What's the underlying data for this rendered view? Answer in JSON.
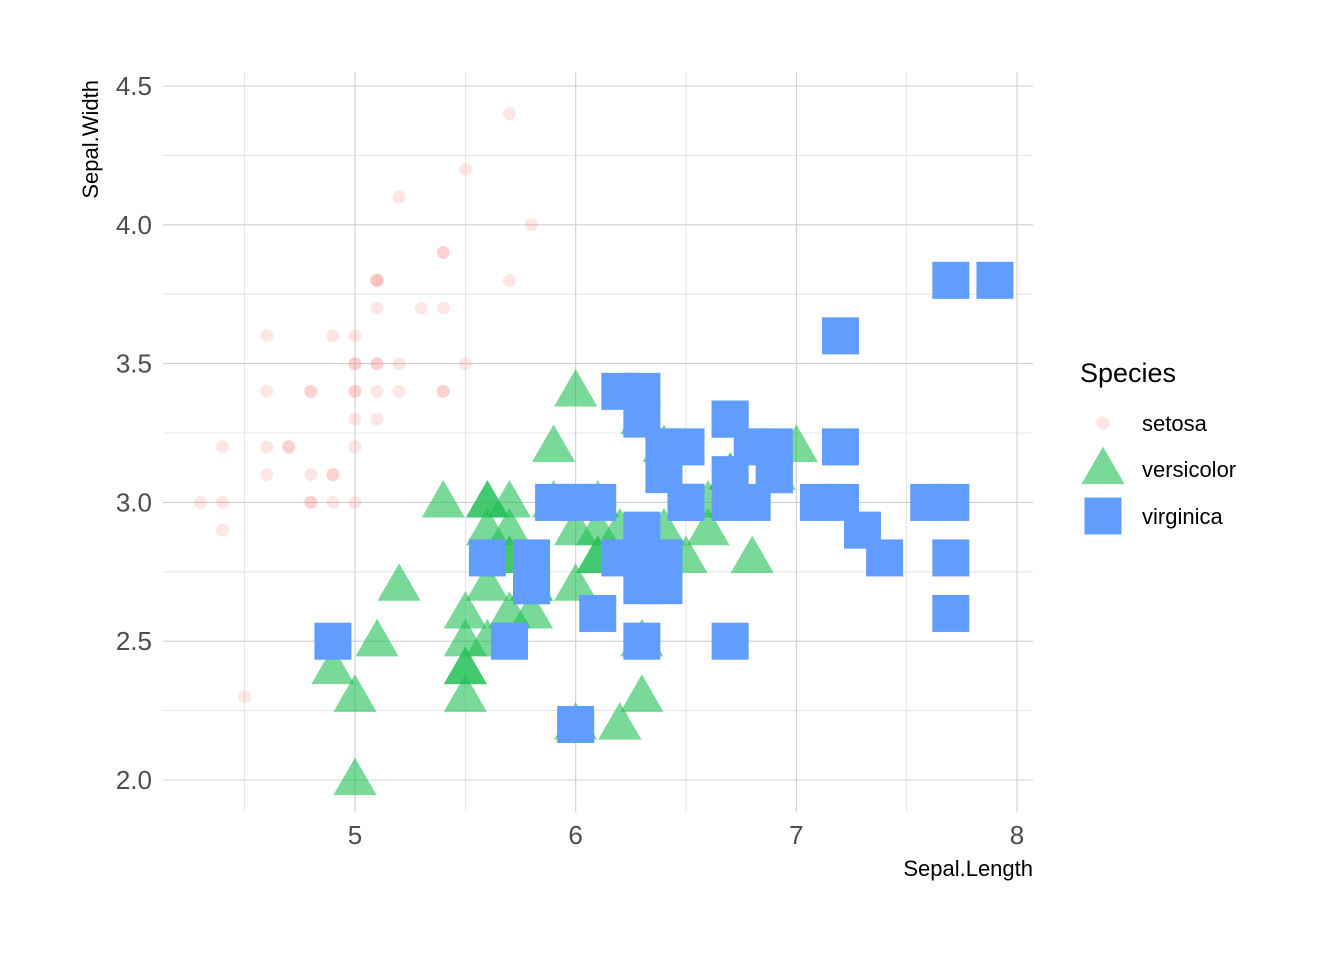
{
  "chart_data": {
    "type": "scatter",
    "xlabel": "Sepal.Length",
    "ylabel": "Sepal.Width",
    "xlim": [
      4.2,
      8.1
    ],
    "ylim": [
      1.9,
      4.5
    ],
    "xticks": [
      5,
      6,
      7,
      8
    ],
    "yticks": [
      2.0,
      2.5,
      3.0,
      3.5,
      4.0,
      4.5
    ],
    "xtick_labels": [
      "5",
      "6",
      "7",
      "8"
    ],
    "ytick_labels": [
      "2.0",
      "2.5",
      "3.0",
      "3.5",
      "4.0",
      "4.5"
    ],
    "grid": true,
    "legend": {
      "title": "Species",
      "position": "right"
    },
    "series": [
      {
        "name": "setosa",
        "shape": "circle",
        "color": "#f8766d",
        "opacity": 0.18,
        "x": [
          5.1,
          4.9,
          4.7,
          4.6,
          5.0,
          5.4,
          4.6,
          5.0,
          4.4,
          4.9,
          5.4,
          4.8,
          4.8,
          4.3,
          5.8,
          5.7,
          5.4,
          5.1,
          5.7,
          5.1,
          5.4,
          5.1,
          4.6,
          5.1,
          4.8,
          5.0,
          5.0,
          5.2,
          5.2,
          4.7,
          4.8,
          5.4,
          5.2,
          5.5,
          4.9,
          5.0,
          5.5,
          4.9,
          4.4,
          5.1,
          5.0,
          4.5,
          4.4,
          5.0,
          5.1,
          4.8,
          5.1,
          4.6,
          5.3,
          5.0
        ],
        "y": [
          3.5,
          3.0,
          3.2,
          3.1,
          3.6,
          3.9,
          3.4,
          3.4,
          2.9,
          3.1,
          3.7,
          3.4,
          3.0,
          3.0,
          4.0,
          4.4,
          3.9,
          3.5,
          3.8,
          3.8,
          3.4,
          3.7,
          3.6,
          3.3,
          3.4,
          3.0,
          3.4,
          3.5,
          3.4,
          3.2,
          3.1,
          3.4,
          4.1,
          4.2,
          3.1,
          3.2,
          3.5,
          3.6,
          3.0,
          3.4,
          3.5,
          2.3,
          3.2,
          3.5,
          3.8,
          3.0,
          3.8,
          3.2,
          3.7,
          3.3
        ]
      },
      {
        "name": "versicolor",
        "shape": "triangle",
        "color": "#1fbf55",
        "opacity": 0.6,
        "x": [
          7.0,
          6.4,
          6.9,
          5.5,
          6.5,
          5.7,
          6.3,
          4.9,
          6.6,
          5.2,
          5.0,
          5.9,
          6.0,
          6.1,
          5.6,
          6.7,
          5.6,
          5.8,
          6.2,
          5.6,
          5.9,
          6.1,
          6.3,
          6.1,
          6.4,
          6.6,
          6.8,
          6.7,
          6.0,
          5.7,
          5.5,
          5.5,
          5.8,
          6.0,
          5.4,
          6.0,
          6.7,
          6.3,
          5.6,
          5.5,
          5.5,
          6.1,
          5.8,
          5.0,
          5.6,
          5.7,
          5.7,
          6.2,
          5.1,
          5.7
        ],
        "y": [
          3.2,
          3.2,
          3.1,
          2.3,
          2.8,
          2.8,
          3.3,
          2.4,
          2.9,
          2.7,
          2.0,
          3.0,
          2.2,
          2.9,
          2.9,
          3.1,
          3.0,
          2.7,
          2.2,
          2.5,
          3.2,
          2.8,
          2.5,
          2.8,
          2.9,
          3.0,
          2.8,
          3.0,
          2.9,
          2.6,
          2.4,
          2.4,
          2.7,
          2.7,
          3.0,
          3.4,
          3.1,
          2.3,
          3.0,
          2.5,
          2.6,
          3.0,
          2.6,
          2.3,
          2.7,
          3.0,
          2.9,
          2.9,
          2.5,
          2.8
        ]
      },
      {
        "name": "virginica",
        "shape": "square",
        "color": "#619cff",
        "opacity": 1.0,
        "x": [
          6.3,
          5.8,
          7.1,
          6.3,
          6.5,
          7.6,
          4.9,
          7.3,
          6.7,
          7.2,
          6.5,
          6.4,
          6.8,
          5.7,
          5.8,
          6.4,
          6.5,
          7.7,
          7.7,
          6.0,
          6.9,
          5.6,
          7.7,
          6.3,
          6.7,
          7.2,
          6.2,
          6.1,
          6.4,
          7.2,
          7.4,
          7.9,
          6.4,
          6.3,
          6.1,
          7.7,
          6.3,
          6.4,
          6.0,
          6.9,
          6.7,
          6.9,
          5.8,
          6.8,
          6.7,
          6.7,
          6.3,
          6.5,
          6.2,
          5.9
        ],
        "y": [
          3.3,
          2.7,
          3.0,
          2.9,
          3.0,
          3.0,
          2.5,
          2.9,
          2.5,
          3.6,
          3.2,
          2.7,
          3.0,
          2.5,
          2.8,
          3.2,
          3.0,
          3.8,
          2.6,
          2.2,
          3.2,
          2.8,
          2.8,
          2.7,
          3.3,
          3.2,
          2.8,
          3.0,
          2.8,
          3.0,
          2.8,
          3.8,
          2.8,
          2.8,
          2.6,
          3.0,
          3.4,
          3.1,
          3.0,
          3.1,
          3.1,
          3.1,
          2.7,
          3.2,
          3.3,
          3.0,
          2.5,
          3.0,
          3.4,
          3.0
        ]
      }
    ]
  }
}
